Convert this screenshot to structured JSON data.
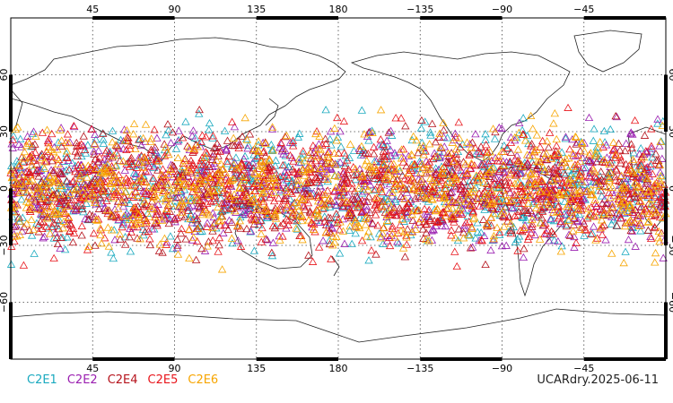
{
  "chart_data": {
    "type": "scatter",
    "title": "",
    "projection": "equirectangular, centered on 180",
    "x_ticks_top": [
      "45",
      "90",
      "135",
      "180",
      "−135",
      "−90",
      "−45"
    ],
    "x_ticks_bottom": [
      "45",
      "90",
      "135",
      "180",
      "−135",
      "−90",
      "−45"
    ],
    "x_tick_lons": [
      45,
      90,
      135,
      180,
      -135,
      -90,
      -45
    ],
    "y_ticks": [
      "60",
      "30",
      "0",
      "−30",
      "−60"
    ],
    "y_tick_lats": [
      60,
      30,
      0,
      -30,
      -60
    ],
    "xlim": [
      0,
      360
    ],
    "ylim": [
      -90,
      90
    ],
    "marker": "open triangle",
    "lat_band": [
      -45,
      45
    ],
    "grid": true,
    "legend_placement": "bottom-left",
    "series": [
      {
        "name": "C2E1",
        "color": "#19a9bf",
        "count": 700
      },
      {
        "name": "C2E2",
        "color": "#9a1eb0",
        "count": 700
      },
      {
        "name": "C2E4",
        "color": "#b5121b",
        "count": 700
      },
      {
        "name": "C2E5",
        "color": "#e8151b",
        "count": 800
      },
      {
        "name": "C2E6",
        "color": "#f7a500",
        "count": 800
      }
    ]
  },
  "stamp": "UCARdry.2025-06-11",
  "colors": {
    "coast": "#222222",
    "frame": "#000000",
    "grid": "#444444"
  }
}
